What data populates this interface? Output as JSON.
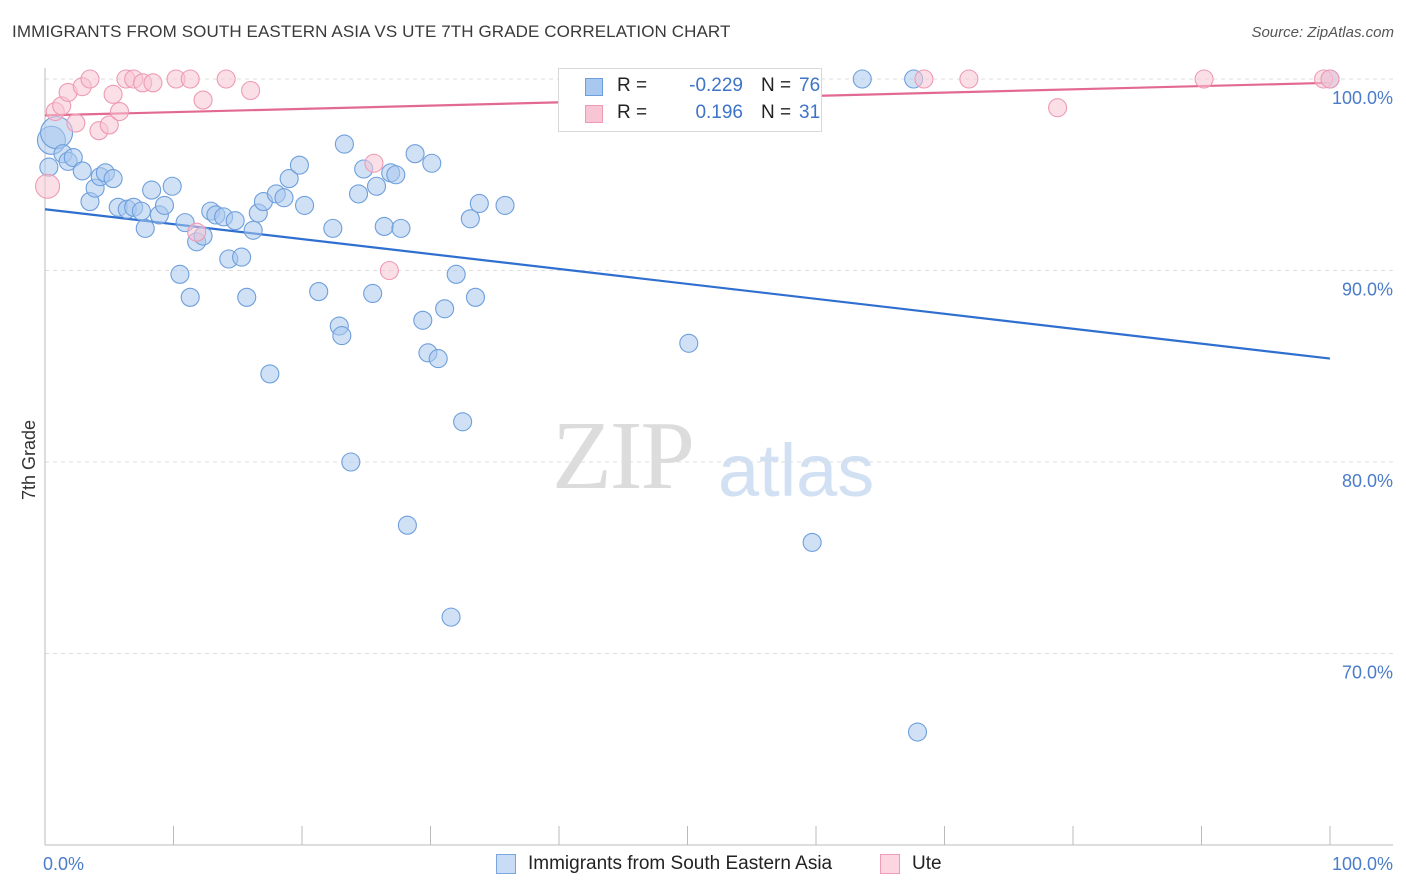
{
  "title": "IMMIGRANTS FROM SOUTH EASTERN ASIA VS UTE 7TH GRADE CORRELATION CHART",
  "source": "Source: ZipAtlas.com",
  "watermark": {
    "zip": "ZIP",
    "atlas": "atlas"
  },
  "legend_box": {
    "series1": {
      "r_label": "R =",
      "r_value": "-0.229",
      "n_label": "N =",
      "n_value": "76"
    },
    "series2": {
      "r_label": "R =",
      "r_value": "0.196",
      "n_label": "N =",
      "n_value": "31"
    }
  },
  "bottom_legend": {
    "series1": "Immigrants from South Eastern Asia",
    "series2": "Ute"
  },
  "colors": {
    "blue_fill": "#a9c8ef",
    "blue_stroke": "#6e9fdc",
    "blue_line": "#2f6fcf",
    "pink_fill": "#f7c5d4",
    "pink_stroke": "#ee9ab4",
    "pink_line": "#e26a92",
    "tick_text": "#4a7cc9",
    "grid": "#dedede"
  },
  "chart_data": {
    "type": "scatter",
    "title": "IMMIGRANTS FROM SOUTH EASTERN ASIA VS UTE 7TH GRADE CORRELATION CHART",
    "xlabel": "",
    "ylabel": "7th Grade",
    "xlim": [
      0,
      100
    ],
    "ylim": [
      62,
      100
    ],
    "x_tick_labels": [
      "0.0%",
      "100.0%"
    ],
    "y_ticks": [
      {
        "value": 100,
        "label": "100.0%"
      },
      {
        "value": 90,
        "label": "90.0%"
      },
      {
        "value": 80,
        "label": "80.0%"
      },
      {
        "value": 70,
        "label": "70.0%"
      }
    ],
    "grid": true,
    "legend_position": "top-center",
    "series": [
      {
        "name": "Immigrants from South Eastern Asia",
        "color": "#a9c8ef",
        "trend": {
          "x": [
            0,
            100
          ],
          "y": [
            93.2,
            85.4
          ]
        },
        "points": [
          [
            0.5,
            96.8
          ],
          [
            0.9,
            97.2
          ],
          [
            1.4,
            96.1
          ],
          [
            1.8,
            95.7
          ],
          [
            2.2,
            95.9
          ],
          [
            2.9,
            95.2
          ],
          [
            3.5,
            93.6
          ],
          [
            3.9,
            94.3
          ],
          [
            4.3,
            94.9
          ],
          [
            4.7,
            95.1
          ],
          [
            5.3,
            94.8
          ],
          [
            5.7,
            93.3
          ],
          [
            6.4,
            93.2
          ],
          [
            6.9,
            93.3
          ],
          [
            7.5,
            93.1
          ],
          [
            7.8,
            92.2
          ],
          [
            8.3,
            94.2
          ],
          [
            8.9,
            92.9
          ],
          [
            9.3,
            93.4
          ],
          [
            9.9,
            94.4
          ],
          [
            10.5,
            89.8
          ],
          [
            10.9,
            92.5
          ],
          [
            11.3,
            88.6
          ],
          [
            11.8,
            91.5
          ],
          [
            12.3,
            91.8
          ],
          [
            12.9,
            93.1
          ],
          [
            13.3,
            92.9
          ],
          [
            13.9,
            92.8
          ],
          [
            14.3,
            90.6
          ],
          [
            14.8,
            92.6
          ],
          [
            15.3,
            90.7
          ],
          [
            15.7,
            88.6
          ],
          [
            16.2,
            92.1
          ],
          [
            16.6,
            93.0
          ],
          [
            17.0,
            93.6
          ],
          [
            17.5,
            84.6
          ],
          [
            18.0,
            94.0
          ],
          [
            18.6,
            93.8
          ],
          [
            19.0,
            94.8
          ],
          [
            19.8,
            95.5
          ],
          [
            20.2,
            93.4
          ],
          [
            21.3,
            88.9
          ],
          [
            22.4,
            92.2
          ],
          [
            22.9,
            87.1
          ],
          [
            23.1,
            86.6
          ],
          [
            23.3,
            96.6
          ],
          [
            23.8,
            80.0
          ],
          [
            24.4,
            94.0
          ],
          [
            24.8,
            95.3
          ],
          [
            25.5,
            88.8
          ],
          [
            25.8,
            94.4
          ],
          [
            26.4,
            92.3
          ],
          [
            26.9,
            95.1
          ],
          [
            27.3,
            95.0
          ],
          [
            27.7,
            92.2
          ],
          [
            28.2,
            76.7
          ],
          [
            28.8,
            96.1
          ],
          [
            29.4,
            87.4
          ],
          [
            29.8,
            85.7
          ],
          [
            30.1,
            95.6
          ],
          [
            30.6,
            85.4
          ],
          [
            31.1,
            88.0
          ],
          [
            31.6,
            71.9
          ],
          [
            32.0,
            89.8
          ],
          [
            32.5,
            82.1
          ],
          [
            33.1,
            92.7
          ],
          [
            33.5,
            88.6
          ],
          [
            33.8,
            93.5
          ],
          [
            35.8,
            93.4
          ],
          [
            50.1,
            86.2
          ],
          [
            59.7,
            75.8
          ],
          [
            63.6,
            100.0
          ],
          [
            67.6,
            100.0
          ],
          [
            67.9,
            65.9
          ],
          [
            100.0,
            100.0
          ],
          [
            0.3,
            95.4
          ]
        ]
      },
      {
        "name": "Ute",
        "color": "#f7c5d4",
        "trend": {
          "x": [
            0,
            100
          ],
          "y": [
            98.1,
            99.8
          ]
        },
        "points": [
          [
            0.2,
            94.4
          ],
          [
            0.8,
            98.3
          ],
          [
            1.3,
            98.6
          ],
          [
            1.8,
            99.3
          ],
          [
            2.4,
            97.7
          ],
          [
            2.9,
            99.6
          ],
          [
            3.5,
            100.0
          ],
          [
            4.2,
            97.3
          ],
          [
            5.0,
            97.6
          ],
          [
            5.3,
            99.2
          ],
          [
            5.8,
            98.3
          ],
          [
            6.3,
            100.0
          ],
          [
            6.9,
            100.0
          ],
          [
            7.6,
            99.8
          ],
          [
            8.4,
            99.8
          ],
          [
            10.2,
            100.0
          ],
          [
            11.3,
            100.0
          ],
          [
            11.8,
            92.0
          ],
          [
            12.3,
            98.9
          ],
          [
            14.1,
            100.0
          ],
          [
            16.0,
            99.4
          ],
          [
            25.6,
            95.6
          ],
          [
            26.8,
            90.0
          ],
          [
            43.5,
            100.0
          ],
          [
            52.8,
            100.0
          ],
          [
            68.4,
            100.0
          ],
          [
            71.9,
            100.0
          ],
          [
            78.8,
            98.5
          ],
          [
            90.2,
            100.0
          ],
          [
            99.5,
            100.0
          ],
          [
            100.0,
            100.0
          ]
        ]
      }
    ]
  }
}
